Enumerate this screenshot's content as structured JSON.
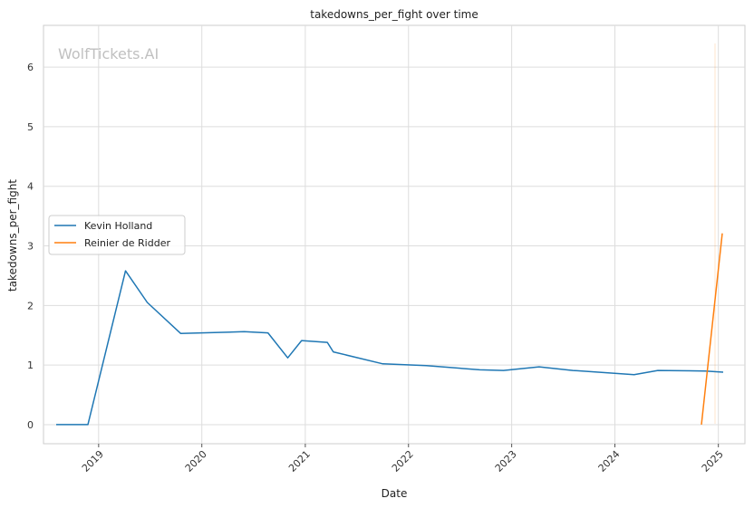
{
  "chart_data": {
    "type": "line",
    "title": "takedowns_per_fight over time",
    "xlabel": "Date",
    "ylabel": "takedowns_per_fight",
    "watermark": "WolfTickets.AI",
    "x_ticks": [
      "2019",
      "2020",
      "2021",
      "2022",
      "2023",
      "2024",
      "2025"
    ],
    "y_ticks": [
      "0",
      "1",
      "2",
      "3",
      "4",
      "5",
      "6"
    ],
    "xlim": [
      "2018-06-20",
      "2025-04-05"
    ],
    "ylim": [
      -0.32,
      6.7
    ],
    "grid": true,
    "legend_position": "center-left",
    "series": [
      {
        "name": "Kevin Holland",
        "color": "#1f77b4",
        "points": [
          {
            "x": "2018-08-04",
            "y": 0.0
          },
          {
            "x": "2018-11-24",
            "y": 0.0
          },
          {
            "x": "2019-04-06",
            "y": 2.58
          },
          {
            "x": "2019-06-22",
            "y": 2.05
          },
          {
            "x": "2019-10-18",
            "y": 1.53
          },
          {
            "x": "2020-05-30",
            "y": 1.56
          },
          {
            "x": "2020-08-22",
            "y": 1.54
          },
          {
            "x": "2020-10-31",
            "y": 1.12
          },
          {
            "x": "2020-12-19",
            "y": 1.41
          },
          {
            "x": "2021-03-20",
            "y": 1.38
          },
          {
            "x": "2021-04-10",
            "y": 1.22
          },
          {
            "x": "2021-10-02",
            "y": 1.02
          },
          {
            "x": "2022-03-05",
            "y": 0.99
          },
          {
            "x": "2022-09-10",
            "y": 0.92
          },
          {
            "x": "2022-12-03",
            "y": 0.91
          },
          {
            "x": "2023-04-08",
            "y": 0.97
          },
          {
            "x": "2023-08-05",
            "y": 0.91
          },
          {
            "x": "2024-03-09",
            "y": 0.84
          },
          {
            "x": "2024-06-01",
            "y": 0.91
          },
          {
            "x": "2024-11-16",
            "y": 0.9
          },
          {
            "x": "2025-01-18",
            "y": 0.88
          }
        ]
      },
      {
        "name": "Reinier de Ridder",
        "color": "#ff7f0e",
        "points": [
          {
            "x": "2024-11-02",
            "y": 0.0
          },
          {
            "x": "2025-01-15",
            "y": 3.21
          }
        ]
      }
    ]
  }
}
